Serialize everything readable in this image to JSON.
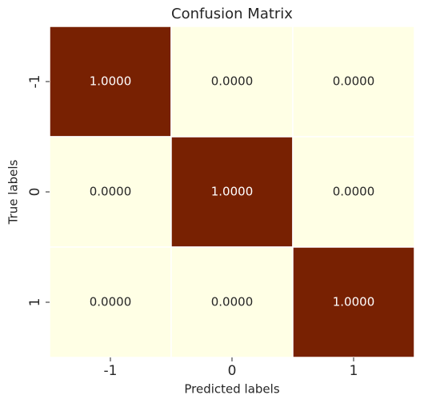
{
  "chart_data": {
    "type": "heatmap",
    "title": "Confusion Matrix",
    "xlabel": "Predicted labels",
    "ylabel": "True labels",
    "x_categories": [
      "-1",
      "0",
      "1"
    ],
    "y_categories": [
      "-1",
      "0",
      "1"
    ],
    "values": [
      [
        1,
        0,
        0
      ],
      [
        0,
        1,
        0
      ],
      [
        0,
        0,
        1
      ]
    ],
    "value_labels": [
      [
        "1.0000",
        "0.0000",
        "0.0000"
      ],
      [
        "0.0000",
        "1.0000",
        "0.0000"
      ],
      [
        "0.0000",
        "0.0000",
        "1.0000"
      ]
    ],
    "colors": [
      "#ffffe5",
      "#782102"
    ]
  }
}
